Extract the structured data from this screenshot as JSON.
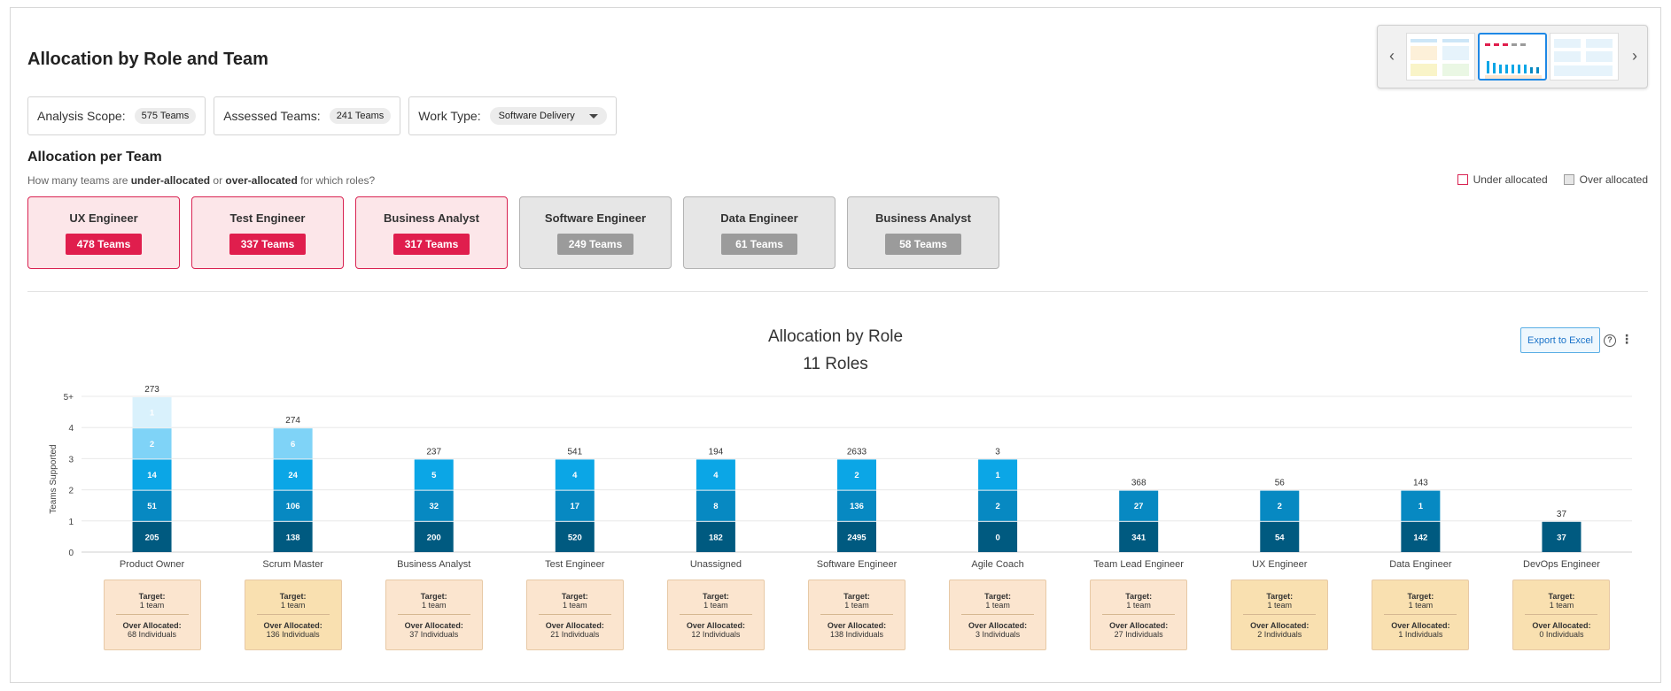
{
  "page": {
    "title": "Allocation by Role and Team"
  },
  "filters": {
    "scope_label": "Analysis Scope:",
    "scope_value": "575 Teams",
    "assessed_label": "Assessed Teams:",
    "assessed_value": "241 Teams",
    "worktype_label": "Work Type:",
    "worktype_value": "Software Delivery"
  },
  "allocation_section": {
    "title": "Allocation per Team",
    "subtitle_prefix": "How many teams are ",
    "subtitle_under": "under-allocated",
    "subtitle_mid": " or ",
    "subtitle_over": "over-allocated",
    "subtitle_suffix": " for which roles?",
    "legend_under": "Under allocated",
    "legend_over": "Over allocated",
    "colors": {
      "under_fill": "#fce6e9",
      "under_border": "#d92352",
      "under_badge": "#e01e4d",
      "over_fill": "#e6e6e6",
      "over_border": "#b3b3b3",
      "over_badge": "#9b9b9b"
    },
    "cards": [
      {
        "name": "UX Engineer",
        "count": "478 Teams",
        "kind": "under"
      },
      {
        "name": "Test Engineer",
        "count": "337 Teams",
        "kind": "under"
      },
      {
        "name": "Business Analyst",
        "count": "317 Teams",
        "kind": "under"
      },
      {
        "name": "Software Engineer",
        "count": "249 Teams",
        "kind": "over"
      },
      {
        "name": "Data Engineer",
        "count": "61 Teams",
        "kind": "over"
      },
      {
        "name": "Business Analyst",
        "count": "58 Teams",
        "kind": "over"
      }
    ]
  },
  "toolbar": {
    "export_label": "Export to Excel",
    "help_icon": "question-circle-icon",
    "more_icon": "kebab-menu-icon"
  },
  "chart_data": {
    "type": "bar",
    "stacked": true,
    "title": "Allocation by Role",
    "subtitle": "11 Roles",
    "ylabel": "Teams Supported",
    "xlabel": "",
    "y_ticks": [
      "0",
      "1",
      "2",
      "3",
      "4",
      "5+"
    ],
    "ylim": [
      0,
      5
    ],
    "grid": true,
    "segment_colors": [
      "#005a80",
      "#0789c2",
      "#0ba6e6",
      "#7fd3f7",
      "#d9f1fc"
    ],
    "categories": [
      "Product Owner",
      "Scrum Master",
      "Business Analyst",
      "Test Engineer",
      "Unassigned",
      "Software Engineer",
      "Agile Coach",
      "Team Lead Engineer",
      "UX Engineer",
      "Data Engineer",
      "DevOps Engineer"
    ],
    "totals": [
      273,
      274,
      237,
      541,
      194,
      2633,
      3,
      368,
      56,
      143,
      37
    ],
    "segments": [
      [
        "205",
        "51",
        "14",
        "2",
        "1"
      ],
      [
        "138",
        "106",
        "24",
        "6"
      ],
      [
        "200",
        "32",
        "5"
      ],
      [
        "520",
        "17",
        "4"
      ],
      [
        "182",
        "8",
        "4"
      ],
      [
        "2495",
        "136",
        "2"
      ],
      [
        "0",
        "2",
        "1"
      ],
      [
        "341",
        "27"
      ],
      [
        "54",
        "2"
      ],
      [
        "142",
        "1"
      ],
      [
        "37"
      ]
    ]
  },
  "targets": {
    "target_label": "Target:",
    "over_label": "Over Allocated:",
    "colors": {
      "light": "#fbe5cf",
      "dark": "#f9e0b0"
    },
    "items": [
      {
        "target": "1 team",
        "over": "68 Individuals",
        "tone": "light"
      },
      {
        "target": "1 team",
        "over": "136 Individuals",
        "tone": "dark"
      },
      {
        "target": "1 team",
        "over": "37 Individuals",
        "tone": "light"
      },
      {
        "target": "1 team",
        "over": "21 Individuals",
        "tone": "light"
      },
      {
        "target": "1 team",
        "over": "12 Individuals",
        "tone": "light"
      },
      {
        "target": "1 team",
        "over": "138 Individuals",
        "tone": "light"
      },
      {
        "target": "1 team",
        "over": "3 Individuals",
        "tone": "light"
      },
      {
        "target": "1 team",
        "over": "27 Individuals",
        "tone": "light"
      },
      {
        "target": "1 team",
        "over": "2 Individuals",
        "tone": "dark"
      },
      {
        "target": "1 team",
        "over": "1 Individuals",
        "tone": "dark"
      },
      {
        "target": "1 team",
        "over": "0 Individuals",
        "tone": "dark"
      }
    ]
  },
  "thumbnails": {
    "prev_icon": "chevron-left-icon",
    "next_icon": "chevron-right-icon",
    "active_index": 1,
    "count": 3
  }
}
